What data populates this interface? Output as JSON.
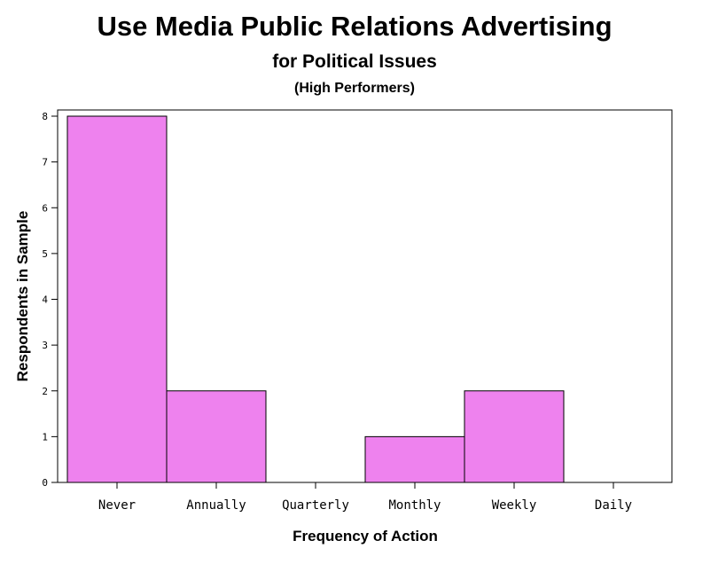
{
  "chart_data": {
    "type": "bar",
    "title": "Use Media Public Relations Advertising",
    "subtitle": "for Political Issues",
    "subtitle2": "(High Performers)",
    "xlabel": "Frequency of Action",
    "ylabel": "Respondents in Sample",
    "categories": [
      "Never",
      "Annually",
      "Quarterly",
      "Monthly",
      "Weekly",
      "Daily"
    ],
    "values": [
      8,
      2,
      0,
      1,
      2,
      0
    ],
    "ylim": [
      0,
      8
    ],
    "yticks": [
      "0",
      "1",
      "2",
      "3",
      "4",
      "5",
      "6",
      "7",
      "8"
    ],
    "bar_color": "#ee82ee",
    "grid": false,
    "legend": "none"
  }
}
